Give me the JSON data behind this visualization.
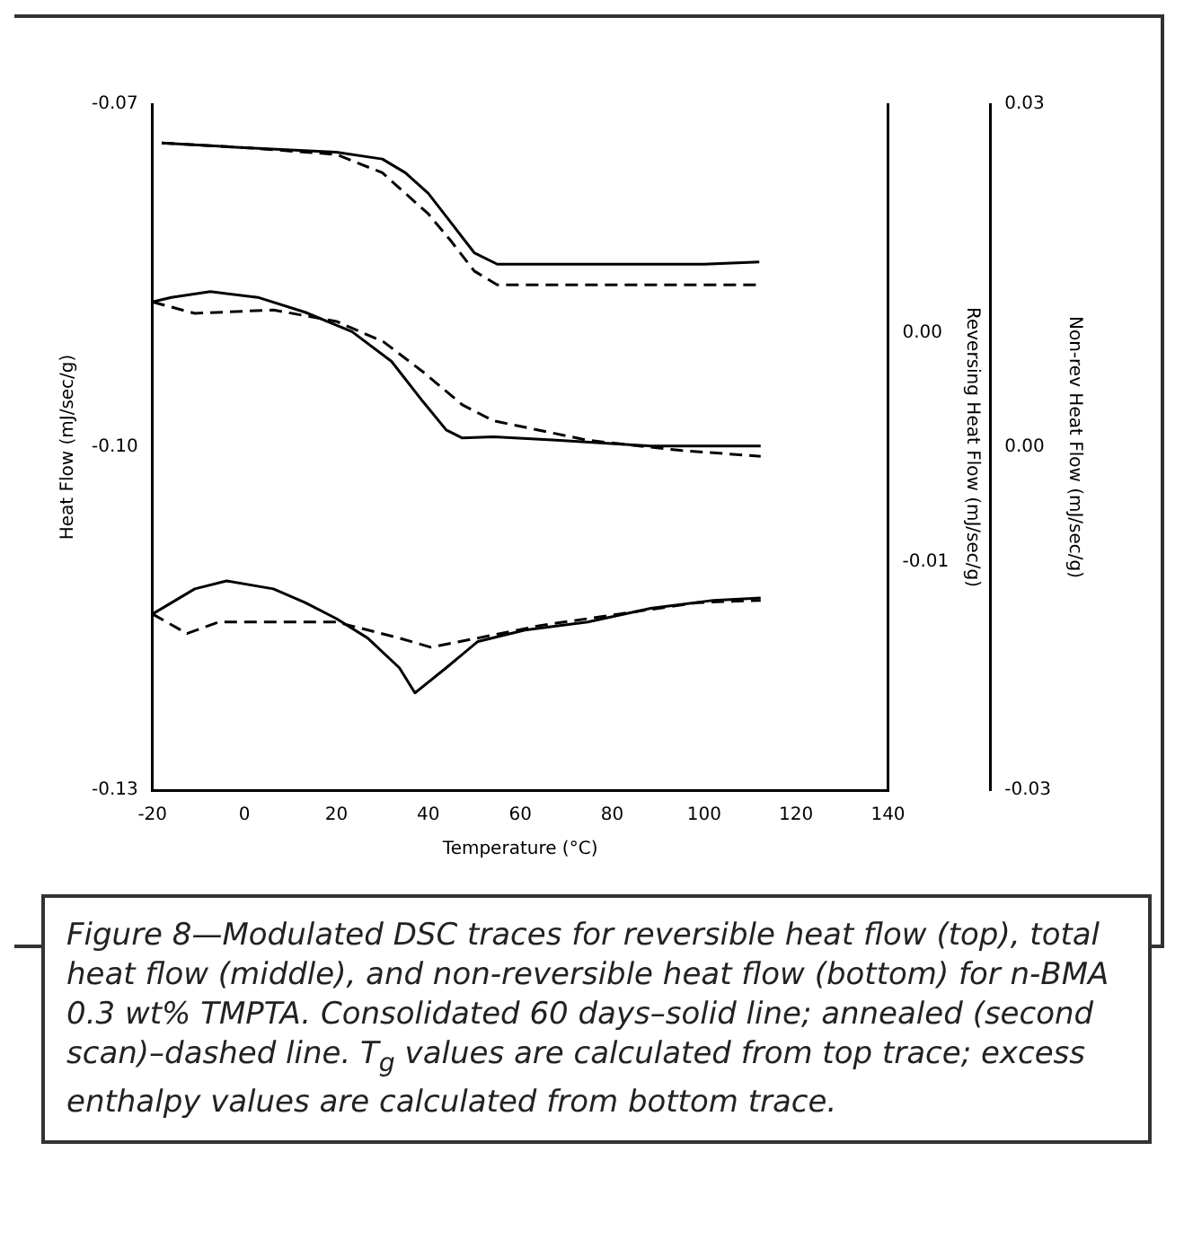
{
  "chart_data": {
    "type": "line",
    "xlabel": "Temperature (°C)",
    "ylabel": "Heat Flow (mJ/sec/g)",
    "y2label": "Reversing Heat Flow (mJ/sec/g)",
    "y3label": "Non-rev Heat Flow (mJ/sec/g)",
    "xlim": [
      -20,
      140
    ],
    "xticks": [
      -20,
      0,
      20,
      40,
      60,
      80,
      100,
      120,
      140
    ],
    "ylim": [
      -0.13,
      -0.07
    ],
    "yticks": [
      -0.13,
      {
        "value": -0.1,
        "label": "-0.10"
      },
      -0.07
    ],
    "y2lim": [
      -0.02,
      0.01
    ],
    "y2ticks": [
      {
        "value": -0.01,
        "label": "-0.01"
      },
      {
        "value": 0,
        "label": "0.00"
      }
    ],
    "y3lim": [
      -0.03,
      0.03
    ],
    "y3ticks": [
      -0.03,
      {
        "value": 0,
        "label": "0.00"
      },
      0.03
    ],
    "grid": false,
    "legend": false,
    "marker": "none",
    "series": [
      {
        "color": "#000000",
        "axis": "y2",
        "line_style": "solid",
        "x": [
          -18,
          0,
          20,
          30,
          35,
          40,
          45,
          50,
          55,
          60,
          80,
          100,
          112
        ],
        "values": [
          0.0083,
          0.0081,
          0.0079,
          0.0076,
          0.007,
          0.0061,
          0.0048,
          0.0035,
          0.003,
          0.003,
          0.003,
          0.003,
          0.0031
        ]
      },
      {
        "color": "#000000",
        "axis": "y2",
        "line_style": "dashed",
        "x": [
          -18,
          0,
          20,
          30,
          40,
          45,
          50,
          55,
          112
        ],
        "values": [
          0.0083,
          0.0081,
          0.0078,
          0.007,
          0.0052,
          0.004,
          0.0027,
          0.0021,
          0.0021
        ]
      },
      {
        "color": "#000000",
        "axis": "y",
        "line_style": "solid",
        "x": [
          -20,
          -15.9,
          -7.4,
          2.9,
          13.2,
          23.4,
          32,
          38.8,
          43.9,
          47.4,
          54.2,
          67.9,
          88.4,
          112.3
        ],
        "values": [
          -0.0873,
          -0.0869,
          -0.0864,
          -0.0869,
          -0.0882,
          -0.0899,
          -0.0925,
          -0.096,
          -0.0985,
          -0.0992,
          -0.0991,
          -0.0994,
          -0.0999,
          -0.0999
        ]
      },
      {
        "color": "#000000",
        "axis": "y",
        "line_style": "dashed",
        "x": [
          -20,
          -10.8,
          6.3,
          20,
          30.3,
          38.8,
          47.4,
          54.2,
          74.7,
          95.2,
          112.3
        ],
        "values": [
          -0.0873,
          -0.0883,
          -0.088,
          -0.089,
          -0.0908,
          -0.0934,
          -0.0963,
          -0.0977,
          -0.0994,
          -0.1003,
          -0.1008
        ]
      },
      {
        "color": "#000000",
        "axis": "y3",
        "line_style": "solid",
        "x": [
          -20,
          -10.8,
          -3.9,
          6.3,
          13.2,
          20,
          26.8,
          33.7,
          37.1,
          43.9,
          50.8,
          61,
          74.7,
          88.4,
          102,
          112.3
        ],
        "values": [
          -0.0146,
          -0.0124,
          -0.0117,
          -0.0124,
          -0.0136,
          -0.015,
          -0.0167,
          -0.0193,
          -0.0215,
          -0.0193,
          -0.017,
          -0.016,
          -0.0153,
          -0.0141,
          -0.0134,
          -0.0132
        ]
      },
      {
        "color": "#000000",
        "axis": "y3",
        "line_style": "dashed",
        "x": [
          -20,
          -12.5,
          -5.6,
          6.3,
          20,
          33.7,
          40.5,
          50.8,
          64.4,
          81.5,
          98.6,
          112.3
        ],
        "values": [
          -0.0146,
          -0.0163,
          -0.0153,
          -0.0153,
          -0.0153,
          -0.0167,
          -0.0175,
          -0.0167,
          -0.0156,
          -0.0146,
          -0.0136,
          -0.0134
        ]
      }
    ],
    "annotations": [
      "Figure 8—Modulated DSC traces for reversible heat flow (top), total heat flow (middle), and non-reversible heat flow (bottom) for n-BMA 0.3 wt% TMPTA. Consolidated 60 days–solid line; annealed (second scan)–dashed line. T$_{g}$ values are calculated from top trace; excess enthalpy values are calculated from bottom trace."
    ]
  }
}
